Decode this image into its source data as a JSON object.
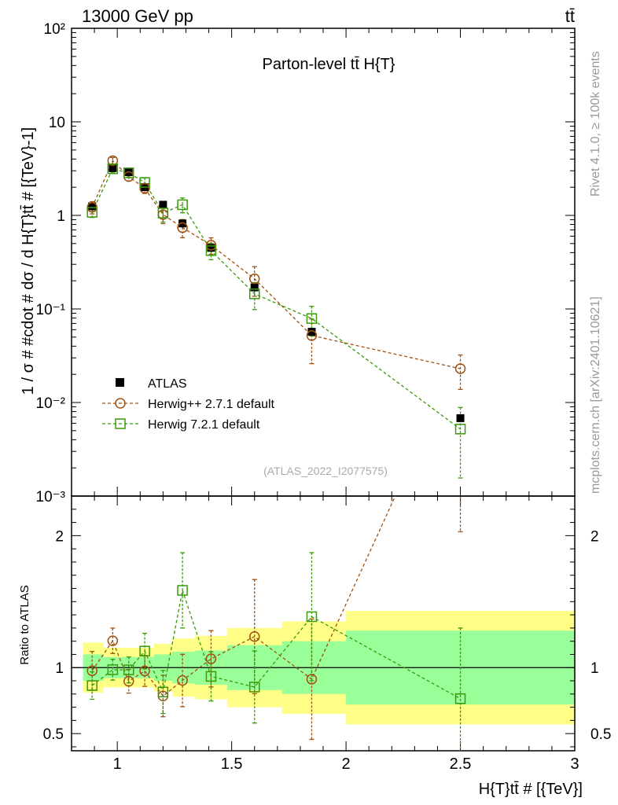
{
  "header": {
    "left": "13000 GeV pp",
    "right": "tt̄"
  },
  "side_text": {
    "rivet": "Rivet 4.1.0, ≥ 100k events",
    "mcplots": "mcplots.cern.ch [arXiv:2401.10621]"
  },
  "colors": {
    "atlas": "#000000",
    "herwigpp": "#a05010",
    "herwig7": "#3a9a0a",
    "band_outer": "#ffff88",
    "band_inner": "#99ff99"
  },
  "chart_data": {
    "type": "scatter",
    "title": "Parton-level tt̄  H{T}",
    "analysis": "(ATLAS_2022_I2077575)",
    "ylabel": "1 / σ # #cdot # dσ / d H{T}tt̄ # [{TeV}-1]",
    "xlabel": "H{T}tt̄ # [{TeV}]",
    "ratio_ylabel": "Ratio to ATLAS",
    "xlim": [
      0.8,
      3.0
    ],
    "ylim": [
      0.001,
      100
    ],
    "ratio_ylim": [
      0.37,
      2.3
    ],
    "x_ticks": [
      1,
      1.5,
      2,
      2.5,
      3
    ],
    "x_tick_labels": [
      "1",
      "1.5",
      "2",
      "2.5",
      "3"
    ],
    "y_tick_labels": [
      "10⁻³",
      "10⁻²",
      "10⁻¹",
      "1",
      "10",
      "10²"
    ],
    "ratio_y_ticks": [
      0.5,
      1,
      2
    ],
    "ratio_y_tick_labels": [
      "0.5",
      "1",
      "2"
    ],
    "legend": [
      "ATLAS",
      "Herwig++ 2.7.1 default",
      "Herwig 7.2.1 default"
    ],
    "bins": [
      [
        0.85,
        0.94
      ],
      [
        0.94,
        1.02
      ],
      [
        1.02,
        1.08
      ],
      [
        1.08,
        1.16
      ],
      [
        1.16,
        1.24
      ],
      [
        1.24,
        1.34
      ],
      [
        1.34,
        1.48
      ],
      [
        1.48,
        1.72
      ],
      [
        1.72,
        2.0
      ],
      [
        2.0,
        3.0
      ]
    ],
    "x": [
      0.89,
      0.98,
      1.05,
      1.12,
      1.2,
      1.285,
      1.41,
      1.6,
      1.85,
      2.5
    ],
    "series": [
      {
        "name": "ATLAS",
        "values": [
          1.25,
          3.2,
          2.9,
          2.0,
          1.3,
          0.82,
          0.45,
          0.17,
          0.057,
          0.0068
        ]
      },
      {
        "name": "Herwig++ 2.7.1 default",
        "values": [
          1.22,
          3.85,
          2.6,
          1.95,
          1.02,
          0.74,
          0.48,
          0.21,
          0.052,
          0.023
        ],
        "err_rel": [
          0.15,
          0.08,
          0.1,
          0.12,
          0.2,
          0.22,
          0.2,
          0.35,
          0.5,
          0.4
        ]
      },
      {
        "name": "Herwig 7.2.1 default",
        "values": [
          1.08,
          3.15,
          2.85,
          2.25,
          1.06,
          1.3,
          0.42,
          0.145,
          0.079,
          0.0052
        ],
        "err_rel": [
          0.12,
          0.08,
          0.1,
          0.12,
          0.2,
          0.18,
          0.2,
          0.32,
          0.35,
          0.7
        ]
      }
    ],
    "ratio_band_inner": [
      0.1,
      0.08,
      0.08,
      0.08,
      0.1,
      0.12,
      0.13,
      0.17,
      0.2,
      0.28
    ],
    "ratio_band_outer": [
      0.19,
      0.15,
      0.15,
      0.15,
      0.18,
      0.22,
      0.24,
      0.3,
      0.35,
      0.43
    ]
  }
}
